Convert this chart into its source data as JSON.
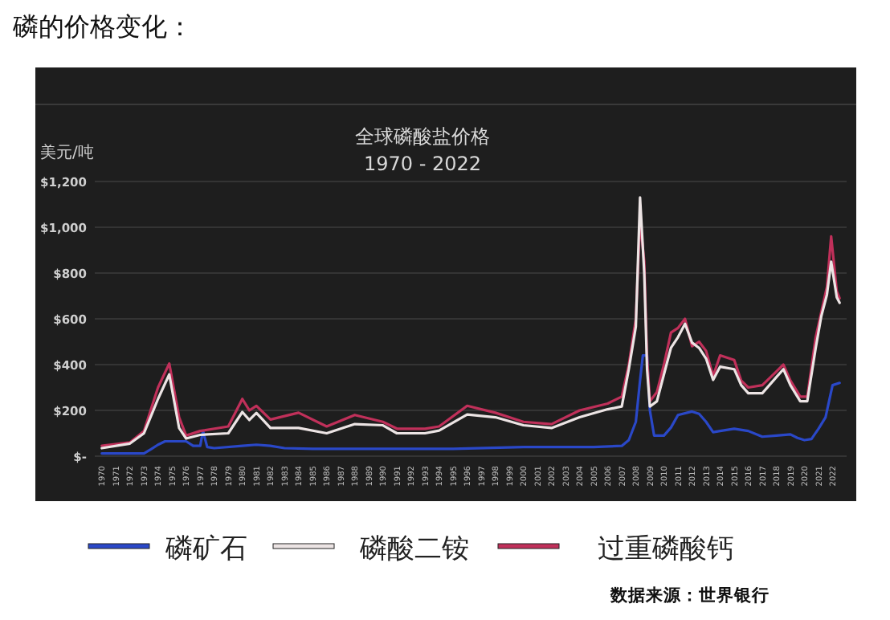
{
  "chart_data": {
    "type": "line",
    "title": "全球磷酸盐价格",
    "subtitle": "1970 - 2022",
    "ylabel": "美元/吨",
    "annotations": [
      "磷的价格变化：",
      "数据来源：世界银行"
    ],
    "xlim": [
      1969.5,
      2023
    ],
    "xticks": [
      1970,
      1971,
      1972,
      1973,
      1974,
      1975,
      1976,
      1977,
      1978,
      1979,
      1980,
      1981,
      1982,
      1983,
      1984,
      1985,
      1986,
      1987,
      1988,
      1989,
      1990,
      1991,
      1992,
      1993,
      1994,
      1995,
      1996,
      1997,
      1998,
      1999,
      2000,
      2001,
      2002,
      2003,
      2004,
      2005,
      2006,
      2007,
      2008,
      2009,
      2010,
      2011,
      2012,
      2013,
      2014,
      2015,
      2016,
      2017,
      2018,
      2019,
      2020,
      2021,
      2022
    ],
    "ylim": [
      0,
      1200
    ],
    "yticks": [
      {
        "value": 0,
        "label": "$-"
      },
      {
        "value": 200,
        "label": "$200"
      },
      {
        "value": 400,
        "label": "$400"
      },
      {
        "value": 600,
        "label": "$600"
      },
      {
        "value": 800,
        "label": "$800"
      },
      {
        "value": 1000,
        "label": "$1,000"
      },
      {
        "value": 1200,
        "label": "$1,200"
      }
    ],
    "grid": "y",
    "legend": "bottom",
    "x": [
      1970,
      1972,
      1973,
      1974,
      1974.8,
      1975.5,
      1976,
      1977,
      1979,
      1980,
      1980.5,
      1981,
      1982,
      1984,
      1986,
      1988,
      1990,
      1991,
      1993,
      1994,
      1996,
      1998,
      2000,
      2002,
      2004,
      2006,
      2007,
      2007.5,
      2008,
      2008.3,
      2008.6,
      2008.8,
      2009,
      2009.5,
      2010,
      2010.5,
      2011,
      2011.5,
      2012,
      2012.5,
      2013,
      2013.5,
      2014,
      2015,
      2015.5,
      2016,
      2017,
      2018,
      2018.5,
      2019,
      2019.7,
      2020.2,
      2020.8,
      2021.2,
      2021.6,
      2021.9,
      2022.3,
      2022.5
    ],
    "series": [
      {
        "name": "磷矿石",
        "color": "#2a48c8",
        "x": [
          1970,
          1973,
          1973.5,
          1974,
          1974.5,
          1976,
          1976.5,
          1977,
          1977.2,
          1977.5,
          1978,
          1980,
          1981,
          1982,
          1983,
          1985,
          1990,
          1995,
          2000,
          2005,
          2007,
          2007.5,
          2008,
          2008.3,
          2008.5,
          2008.8,
          2009,
          2009.3,
          2010,
          2010.5,
          2011,
          2012,
          2012.5,
          2013,
          2013.5,
          2014,
          2015,
          2016,
          2017,
          2018,
          2019,
          2019.5,
          2020,
          2020.5,
          2021,
          2021.5,
          2022,
          2022.5
        ],
        "values": [
          12,
          12,
          30,
          50,
          65,
          65,
          45,
          45,
          110,
          40,
          35,
          45,
          50,
          45,
          35,
          32,
          32,
          32,
          40,
          40,
          45,
          70,
          150,
          330,
          440,
          440,
          200,
          90,
          90,
          125,
          180,
          195,
          185,
          150,
          105,
          110,
          120,
          110,
          85,
          90,
          95,
          80,
          70,
          75,
          120,
          170,
          310,
          320
        ]
      },
      {
        "name": "过重磷酸钙",
        "color": "#c0305a",
        "values": [
          45,
          60,
          110,
          300,
          405,
          170,
          90,
          110,
          130,
          250,
          200,
          220,
          160,
          190,
          130,
          180,
          150,
          120,
          120,
          130,
          220,
          190,
          150,
          140,
          200,
          230,
          260,
          400,
          600,
          1030,
          850,
          430,
          240,
          280,
          400,
          540,
          560,
          600,
          480,
          500,
          460,
          350,
          440,
          420,
          330,
          300,
          310,
          370,
          400,
          330,
          260,
          260,
          520,
          630,
          740,
          960,
          720,
          690
        ]
      },
      {
        "name": "磷酸二铵",
        "color": "#ece4e4",
        "values": [
          35,
          55,
          100,
          250,
          357,
          123,
          77,
          93,
          100,
          193,
          158,
          189,
          123,
          123,
          100,
          140,
          135,
          100,
          100,
          112,
          182,
          170,
          135,
          123,
          170,
          205,
          217,
          380,
          566,
          1130,
          800,
          380,
          217,
          240,
          357,
          473,
          520,
          578,
          496,
          473,
          426,
          333,
          391,
          380,
          310,
          275,
          275,
          345,
          380,
          310,
          240,
          240,
          473,
          612,
          706,
          850,
          694,
          670
        ]
      }
    ]
  }
}
